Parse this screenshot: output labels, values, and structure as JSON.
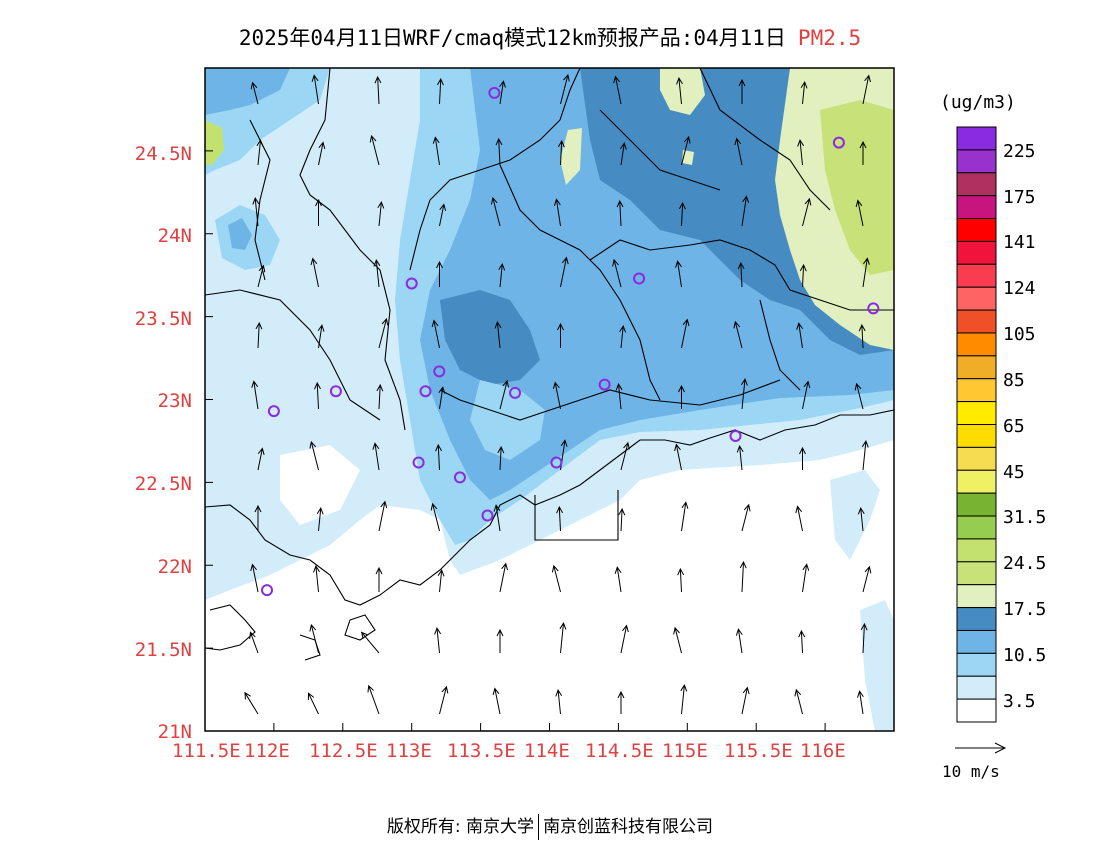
{
  "title": {
    "main": "2025年04月11日WRF/cmaq模式12km预报产品:04月11日",
    "species": "PM2.5"
  },
  "axes": {
    "y_ticks": [
      "24.5N",
      "24N",
      "23.5N",
      "23N",
      "22.5N",
      "22N",
      "21.5N",
      "21N"
    ],
    "x_ticks": [
      "111.5E",
      "112E",
      "112.5E",
      "113E",
      "113.5E",
      "114E",
      "114.5E",
      "115E",
      "115.5E",
      "116E"
    ],
    "lon_range": [
      111.5,
      116.5
    ],
    "lat_range": [
      21,
      25
    ]
  },
  "colorbar": {
    "unit": "(ug/m3)",
    "colors": [
      "#8a2be2",
      "#9932cc",
      "#b03060",
      "#c8147f",
      "#ff0000",
      "#f0143c",
      "#fa3c50",
      "#ff6464",
      "#f05028",
      "#ff8c00",
      "#f0ad28",
      "#ffc832",
      "#ffeb00",
      "#ffdc00",
      "#f5dc50",
      "#f0f064",
      "#78b432",
      "#96cd50",
      "#c3e16e",
      "#c8e178",
      "#e1f0be",
      "#468cc3",
      "#6eb4e6",
      "#9bd7f5",
      "#d2ecfa",
      "#ffffff"
    ],
    "labels": [
      "225",
      "175",
      "141",
      "124",
      "105",
      "85",
      "65",
      "45",
      "31.5",
      "24.5",
      "17.5",
      "10.5",
      "3.5"
    ]
  },
  "wind_legend": {
    "label": "10 m/s"
  },
  "stations": [
    {
      "lon": 113.6,
      "lat": 24.85
    },
    {
      "lon": 116.1,
      "lat": 24.55
    },
    {
      "lon": 113.0,
      "lat": 23.7
    },
    {
      "lon": 114.65,
      "lat": 23.73
    },
    {
      "lon": 116.35,
      "lat": 23.55
    },
    {
      "lon": 113.2,
      "lat": 23.17
    },
    {
      "lon": 112.45,
      "lat": 23.05
    },
    {
      "lon": 113.1,
      "lat": 23.05
    },
    {
      "lon": 113.75,
      "lat": 23.04
    },
    {
      "lon": 114.4,
      "lat": 23.09
    },
    {
      "lon": 112.0,
      "lat": 22.93
    },
    {
      "lon": 115.35,
      "lat": 22.78
    },
    {
      "lon": 113.05,
      "lat": 22.62
    },
    {
      "lon": 114.05,
      "lat": 22.62
    },
    {
      "lon": 113.35,
      "lat": 22.53
    },
    {
      "lon": 113.55,
      "lat": 22.3
    },
    {
      "lon": 111.95,
      "lat": 21.85
    }
  ],
  "footer": {
    "left": "版权所有: 南京大学",
    "right": "南京创蓝科技有限公司"
  }
}
